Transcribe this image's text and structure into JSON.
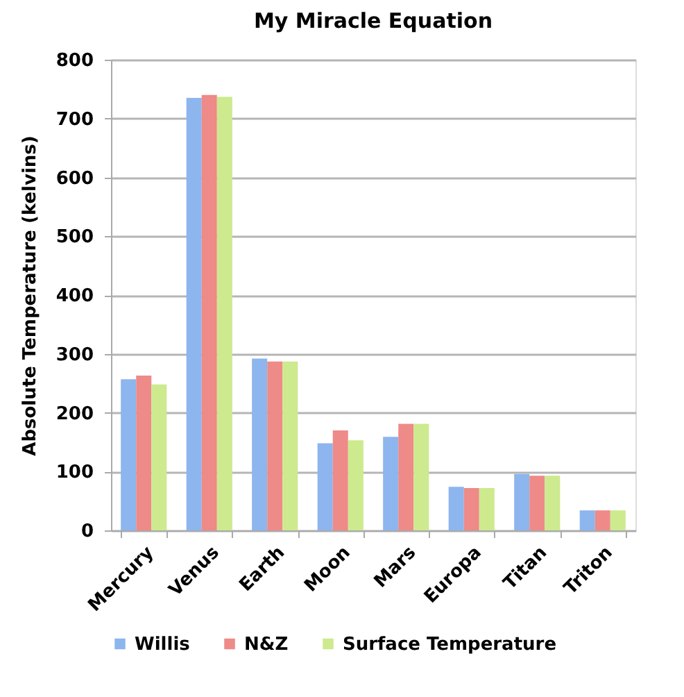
{
  "chart_data": {
    "type": "bar",
    "title": "My Miracle Equation",
    "ylabel": "Absolute Temperature (kelvins)",
    "categories": [
      "Mercury",
      "Venus",
      "Earth",
      "Moon",
      "Mars",
      "Europa",
      "Titan",
      "Triton"
    ],
    "series": [
      {
        "name": "Willis",
        "color": "#8db5ee",
        "values": [
          257,
          735,
          292,
          148,
          159,
          74,
          96,
          34
        ]
      },
      {
        "name": "N&Z",
        "color": "#ee8a88",
        "values": [
          263,
          740,
          287,
          170,
          181,
          72,
          93,
          34
        ]
      },
      {
        "name": "Surface Temperature",
        "color": "#cdea8e",
        "values": [
          248,
          737,
          287,
          153,
          181,
          72,
          93,
          34
        ]
      }
    ],
    "ylim": [
      0,
      800
    ],
    "yticks": [
      0,
      100,
      200,
      300,
      400,
      500,
      600,
      700,
      800
    ],
    "grid": "y",
    "legend": "bottom"
  }
}
